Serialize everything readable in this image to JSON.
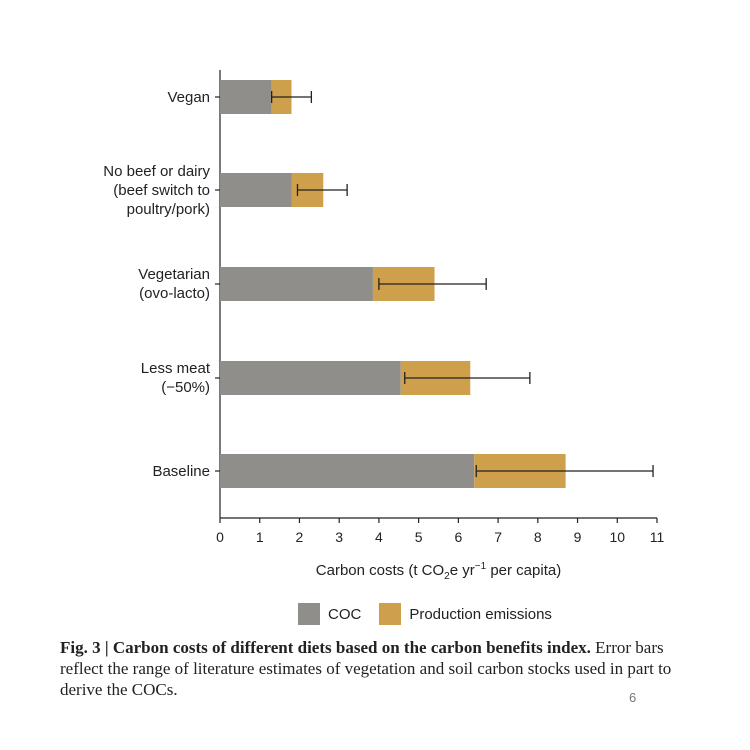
{
  "chart_data": {
    "type": "bar",
    "orientation": "horizontal",
    "stacked": true,
    "categories": [
      [
        "Vegan"
      ],
      [
        "No beef or dairy",
        "(beef switch to",
        "poultry/pork)"
      ],
      [
        "Vegetarian",
        "(ovo-lacto)"
      ],
      [
        "Less meat",
        "(−50%)"
      ],
      [
        "Baseline"
      ]
    ],
    "series": [
      {
        "name": "COC",
        "color": "#8f8e8b",
        "values": [
          1.3,
          1.8,
          3.85,
          4.55,
          6.4
        ]
      },
      {
        "name": "Production emissions",
        "color": "#cfa04b",
        "values": [
          0.5,
          0.8,
          1.55,
          1.75,
          2.3
        ]
      }
    ],
    "error_bars": [
      {
        "low": 1.3,
        "high": 2.3
      },
      {
        "low": 1.95,
        "high": 3.2
      },
      {
        "low": 4.0,
        "high": 6.7
      },
      {
        "low": 4.65,
        "high": 7.8
      },
      {
        "low": 6.45,
        "high": 10.9
      }
    ],
    "xlim": [
      0,
      11
    ],
    "xticks": [
      0,
      1,
      2,
      3,
      4,
      5,
      6,
      7,
      8,
      9,
      10,
      11
    ],
    "xlabel": {
      "pre": "Carbon costs (t CO",
      "sub": "2",
      "mid": "e yr",
      "sup": "−1",
      "post": " per capita)"
    },
    "legend_position": "bottom"
  },
  "legend": {
    "coc_label": "COC",
    "prod_label": "Production emissions"
  },
  "caption": {
    "bold": "Fig. 3 | Carbon costs of different diets based on the carbon benefits index.",
    "text": " Error bars reflect the range of literature estimates of vegetation and soil carbon stocks used in part to derive the COCs."
  },
  "page_number": "6"
}
